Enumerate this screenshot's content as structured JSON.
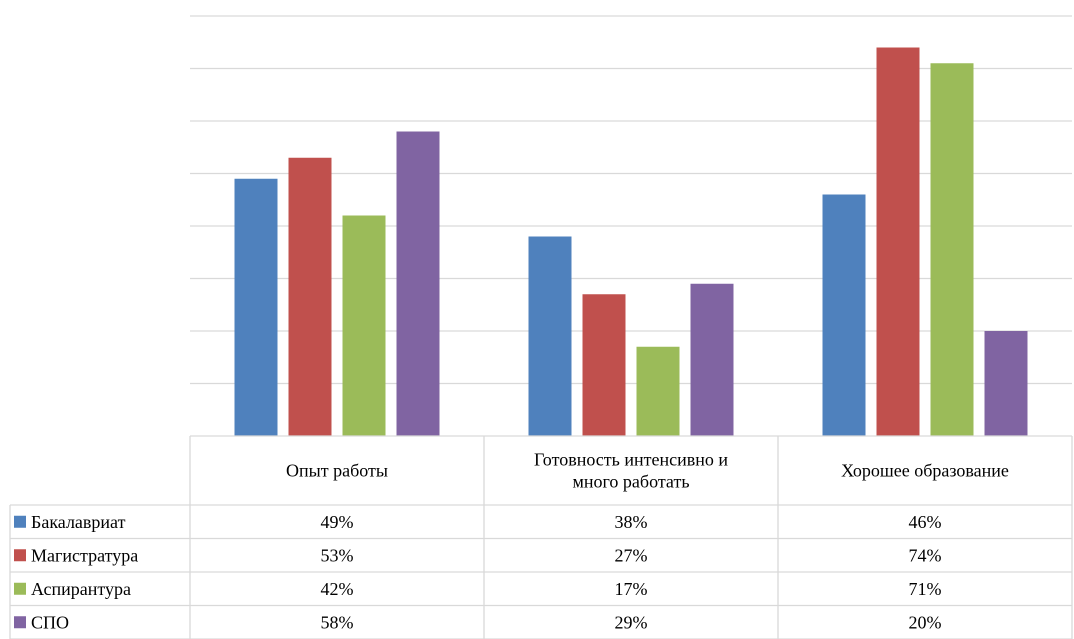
{
  "chart_data": {
    "type": "bar",
    "categories": [
      "Опыт работы",
      "Готовность интенсивно и много работать",
      "Хорошее образование"
    ],
    "category_lines": [
      [
        "Опыт работы"
      ],
      [
        "Готовность интенсивно и",
        "много работать"
      ],
      [
        "Хорошее образование"
      ]
    ],
    "series": [
      {
        "name": "Бакалавриат",
        "color": "#4f81bd",
        "values": [
          49,
          38,
          46
        ],
        "labels": [
          "49%",
          "38%",
          "46%"
        ]
      },
      {
        "name": "Магистратура",
        "color": "#c0504d",
        "values": [
          53,
          27,
          74
        ],
        "labels": [
          "53%",
          "27%",
          "74%"
        ]
      },
      {
        "name": "Аспирантура",
        "color": "#9bbb59",
        "values": [
          42,
          17,
          71
        ],
        "labels": [
          "42%",
          "17%",
          "71%"
        ]
      },
      {
        "name": "СПО",
        "color": "#8064a2",
        "values": [
          58,
          29,
          20
        ],
        "labels": [
          "58%",
          "29%",
          "20%"
        ]
      }
    ],
    "ylim": [
      0,
      80
    ],
    "y_gridlines": [
      10,
      20,
      30,
      40,
      50,
      60,
      70,
      80
    ],
    "grid": true,
    "legend": "data-table",
    "title": "",
    "xlabel": "",
    "ylabel": ""
  }
}
